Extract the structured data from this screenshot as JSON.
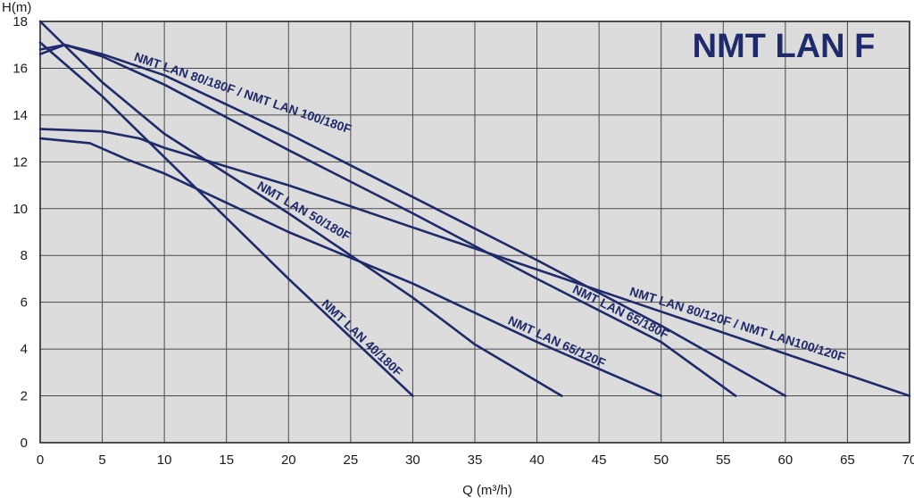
{
  "chart_data": {
    "type": "line",
    "title": "NMT LAN F",
    "xlabel": "Q (m³/h)",
    "ylabel": "H(m)",
    "xlim": [
      0,
      70
    ],
    "ylim": [
      0,
      18
    ],
    "x_ticks": [
      "0",
      "5",
      "10",
      "15",
      "20",
      "25",
      "30",
      "35",
      "40",
      "45",
      "50",
      "55",
      "60",
      "65",
      "70"
    ],
    "y_ticks": [
      "0",
      "2",
      "4",
      "6",
      "8",
      "10",
      "12",
      "14",
      "16",
      "18"
    ],
    "grid": true,
    "colors": {
      "background": "#dcdcdc",
      "grid": "#4a4a4a",
      "curve": "#1f2a6b",
      "title": "#1f2a6b"
    },
    "series": [
      {
        "name": "NMT LAN 40/180F",
        "points": [
          [
            0,
            17.1
          ],
          [
            5,
            14.8
          ],
          [
            10,
            12.2
          ],
          [
            15,
            9.6
          ],
          [
            20,
            7.0
          ],
          [
            25,
            4.5
          ],
          [
            30,
            2.0
          ]
        ]
      },
      {
        "name": "NMT LAN 50/180F",
        "points": [
          [
            0,
            18.0
          ],
          [
            5,
            15.4
          ],
          [
            10,
            13.2
          ],
          [
            15,
            11.5
          ],
          [
            20,
            9.8
          ],
          [
            25,
            8.0
          ],
          [
            30,
            6.2
          ],
          [
            35,
            4.2
          ],
          [
            42,
            2.0
          ]
        ]
      },
      {
        "name": "NMT LAN 65/120F",
        "points": [
          [
            0,
            13.0
          ],
          [
            4,
            12.8
          ],
          [
            7,
            12.1
          ],
          [
            10,
            11.5
          ],
          [
            20,
            9.0
          ],
          [
            30,
            6.8
          ],
          [
            40,
            4.3
          ],
          [
            50,
            2.0
          ]
        ]
      },
      {
        "name": "NMT LAN 65/180F",
        "points": [
          [
            0,
            16.6
          ],
          [
            2,
            17.0
          ],
          [
            5,
            16.5
          ],
          [
            10,
            15.3
          ],
          [
            20,
            12.5
          ],
          [
            30,
            9.8
          ],
          [
            40,
            7.0
          ],
          [
            50,
            4.3
          ],
          [
            56,
            2.0
          ]
        ]
      },
      {
        "name": "NMT LAN 80/180F / NMT LAN 100/180F",
        "points": [
          [
            0,
            16.8
          ],
          [
            2,
            17.0
          ],
          [
            5,
            16.6
          ],
          [
            10,
            15.7
          ],
          [
            20,
            13.2
          ],
          [
            30,
            10.5
          ],
          [
            40,
            7.8
          ],
          [
            50,
            5.0
          ],
          [
            60,
            2.0
          ]
        ]
      },
      {
        "name": "NMT LAN 80/120F / NMT LAN100/120F",
        "points": [
          [
            0,
            13.4
          ],
          [
            5,
            13.3
          ],
          [
            8,
            13.0
          ],
          [
            10,
            12.6
          ],
          [
            20,
            11.0
          ],
          [
            30,
            9.2
          ],
          [
            40,
            7.4
          ],
          [
            50,
            5.6
          ],
          [
            60,
            3.8
          ],
          [
            70,
            2.0
          ]
        ]
      }
    ]
  }
}
